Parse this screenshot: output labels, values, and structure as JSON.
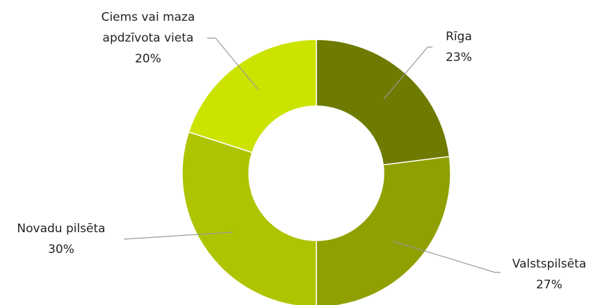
{
  "chart_data": {
    "type": "donut",
    "categories": [
      "Rīga",
      "Valstspilsēta",
      "Novadu pilsēta",
      "Ciems vai maza apdzīvota vieta"
    ],
    "values": [
      23,
      27,
      30,
      20
    ],
    "value_labels": [
      "23%",
      "27%",
      "30%",
      "20%"
    ],
    "colors": [
      "#6e7b00",
      "#8fa000",
      "#afc400",
      "#cce300"
    ]
  }
}
